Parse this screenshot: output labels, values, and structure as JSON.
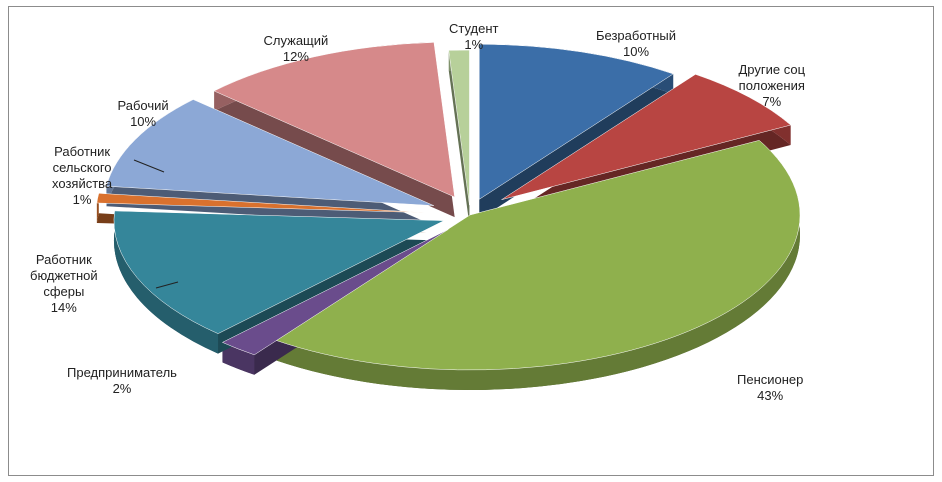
{
  "chart_data": {
    "type": "pie",
    "categories": [
      "Безработный",
      "Другие соц положения",
      "Пенсионер",
      "Предприниматель",
      "Работник бюджетной сферы",
      "Работник сельского хозяйства",
      "Рабочий",
      "Служащий",
      "Студент"
    ],
    "values": [
      10,
      7,
      43,
      2,
      14,
      1,
      10,
      12,
      1
    ],
    "colors": [
      "#3b6ea8",
      "#b84542",
      "#8fb04d",
      "#6a4c8c",
      "#35869a",
      "#d9712e",
      "#8ca8d6",
      "#d6898a",
      "#b7d09a"
    ],
    "data_labels": [
      {
        "lines": [
          "Безработный",
          "10%"
        ]
      },
      {
        "lines": [
          "Другие соц",
          "положения",
          "7%"
        ]
      },
      {
        "lines": [
          "Пенсионер",
          "43%"
        ]
      },
      {
        "lines": [
          "Предприниматель",
          "2%"
        ]
      },
      {
        "lines": [
          "Работник",
          "бюджетной",
          "сферы",
          "14%"
        ]
      },
      {
        "lines": [
          "Работник",
          "сельского",
          "хозяйства",
          "1%"
        ]
      },
      {
        "lines": [
          "Рабочий",
          "10%"
        ]
      },
      {
        "lines": [
          "Служащий",
          "12%"
        ]
      },
      {
        "lines": [
          "Студент",
          "1%"
        ]
      }
    ],
    "legend": "none",
    "style": "3d-exploded"
  }
}
